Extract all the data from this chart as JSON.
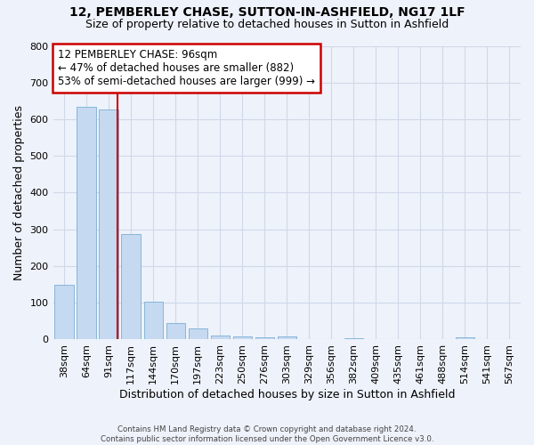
{
  "title_line1": "12, PEMBERLEY CHASE, SUTTON-IN-ASHFIELD, NG17 1LF",
  "title_line2": "Size of property relative to detached houses in Sutton in Ashfield",
  "xlabel": "Distribution of detached houses by size in Sutton in Ashfield",
  "ylabel": "Number of detached properties",
  "footnote": "Contains HM Land Registry data © Crown copyright and database right 2024.\nContains public sector information licensed under the Open Government Licence v3.0.",
  "bar_labels": [
    "38sqm",
    "64sqm",
    "91sqm",
    "117sqm",
    "144sqm",
    "170sqm",
    "197sqm",
    "223sqm",
    "250sqm",
    "276sqm",
    "303sqm",
    "329sqm",
    "356sqm",
    "382sqm",
    "409sqm",
    "435sqm",
    "461sqm",
    "488sqm",
    "514sqm",
    "541sqm",
    "567sqm"
  ],
  "bar_values": [
    150,
    633,
    626,
    288,
    103,
    44,
    30,
    12,
    9,
    7,
    9,
    0,
    0,
    4,
    0,
    0,
    0,
    0,
    7,
    0,
    0
  ],
  "bar_color": "#c5d9f0",
  "bar_edge_color": "#7bafd4",
  "property_label": "12 PEMBERLEY CHASE: 96sqm",
  "annotation_line1": "← 47% of detached houses are smaller (882)",
  "annotation_line2": "53% of semi-detached houses are larger (999) →",
  "vline_color": "#cc0000",
  "vline_x_index": 2.38,
  "annotation_box_color": "#ffffff",
  "annotation_box_edge_color": "#cc0000",
  "ylim": [
    0,
    800
  ],
  "yticks": [
    0,
    100,
    200,
    300,
    400,
    500,
    600,
    700,
    800
  ],
  "background_color": "#eef2fa",
  "grid_color": "#d0d8e8",
  "title_fontsize": 10,
  "subtitle_fontsize": 9,
  "ylabel_fontsize": 9,
  "xlabel_fontsize": 9,
  "tick_fontsize": 8,
  "annot_fontsize": 8.5
}
